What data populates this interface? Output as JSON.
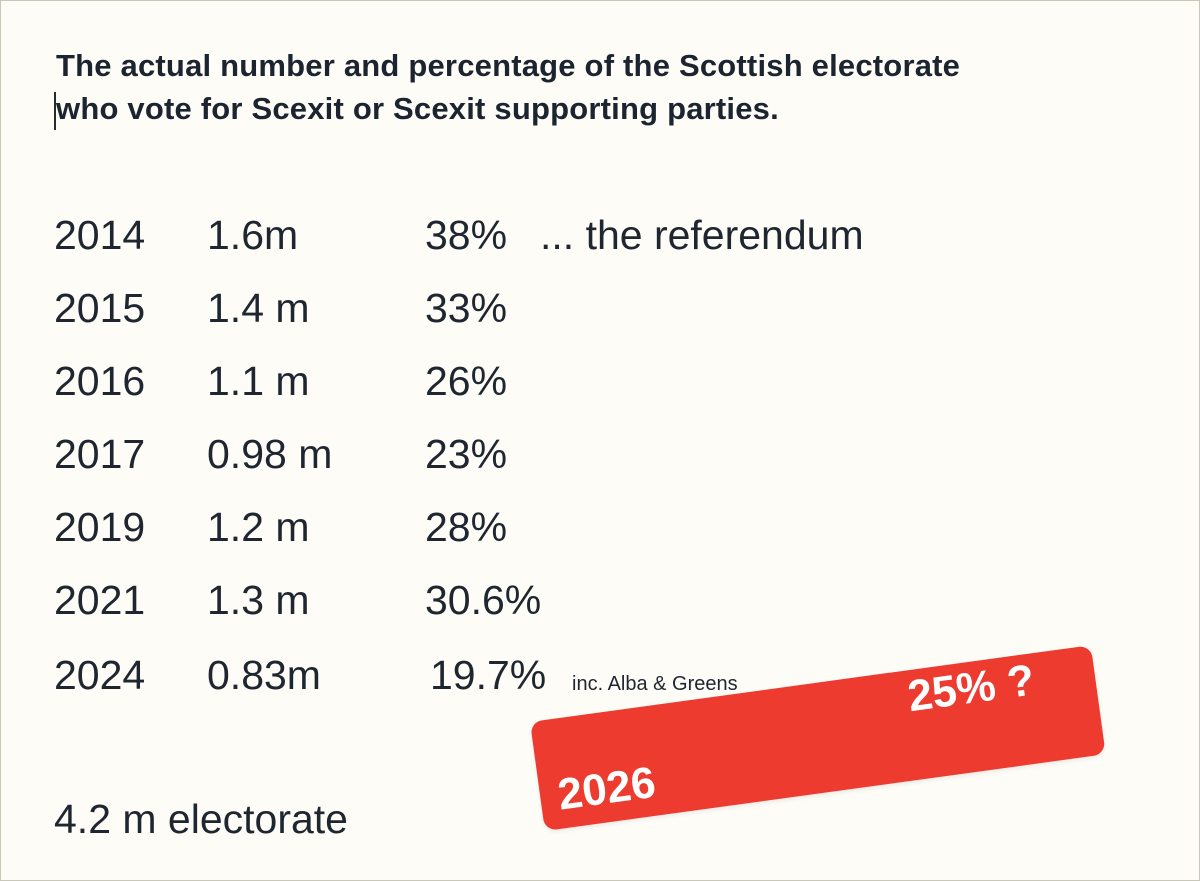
{
  "title": {
    "line1": "The actual number and percentage of the Scottish electorate",
    "line2": "who vote for Scexit or Scexit supporting parties."
  },
  "rows": [
    {
      "year": "2014",
      "number": "1.6m",
      "percent": "38%",
      "note": "...  the referendum"
    },
    {
      "year": "2015",
      "number": "1.4 m",
      "percent": "33%"
    },
    {
      "year": "2016",
      "number": "1.1 m",
      "percent": "26%"
    },
    {
      "year": "2017",
      "number": "0.98 m",
      "percent": "23%"
    },
    {
      "year": "2019",
      "number": "1.2 m",
      "percent": "28%"
    },
    {
      "year": "2021",
      "number": "1.3 m",
      "percent": "30.6%"
    },
    {
      "year": "2024",
      "number": "0.83m",
      "percent": "19.7%",
      "small_note": "inc. Alba & Greens"
    }
  ],
  "electorate": "4.2 m electorate",
  "badge": {
    "year": "2026",
    "percent": "25% ?",
    "color": "#ee3b2f"
  }
}
